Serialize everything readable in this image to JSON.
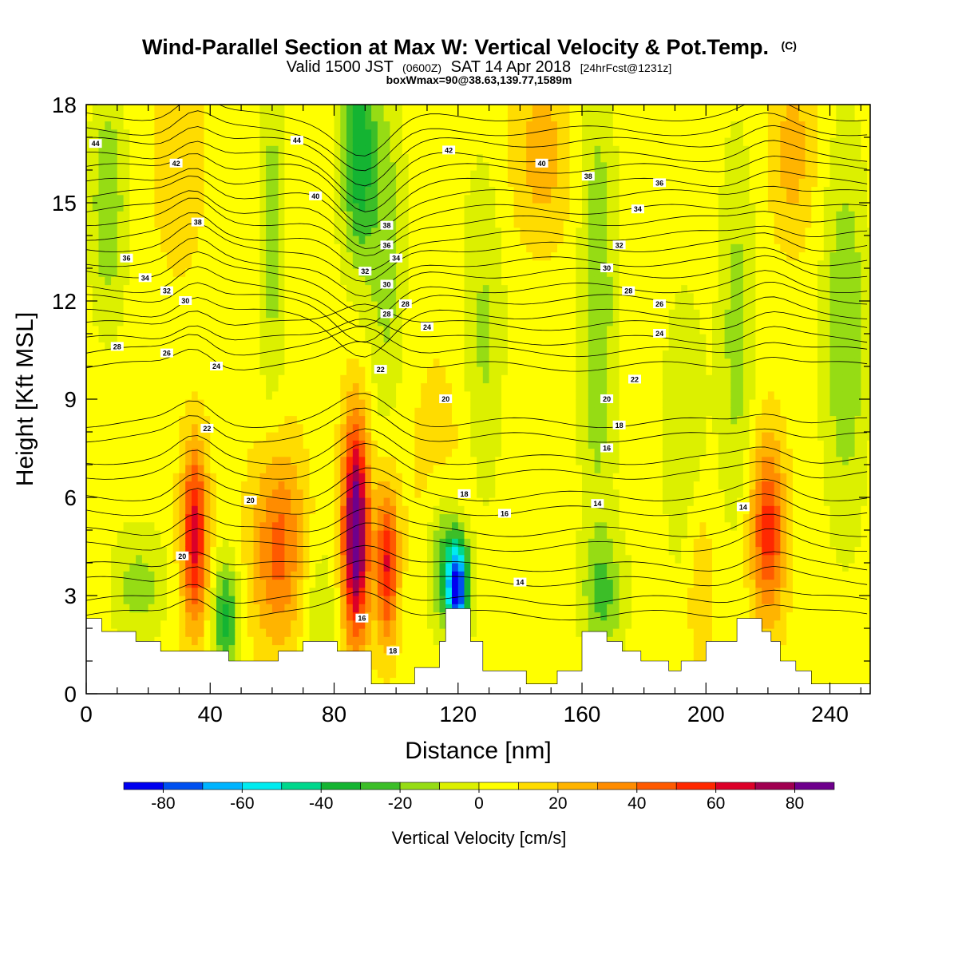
{
  "chart_data": {
    "type": "heatmap",
    "title": "Wind-Parallel Section at Max W: Vertical Velocity & Pot.Temp.",
    "title_superscript": "(C)",
    "subtitle_parts": [
      "Valid 1500 JST",
      "(0600Z)",
      "SAT 14 Apr 2018",
      "[24hrFcst@1231z]"
    ],
    "subtitle2": "boxWmax=90@38.63,139.77,1589m",
    "xlabel": "Distance [nm]",
    "ylabel": "Height [Kft MSL]",
    "xlim": [
      0,
      253
    ],
    "ylim": [
      0,
      18
    ],
    "x_ticks": [
      0,
      40,
      80,
      120,
      160,
      200,
      240
    ],
    "y_ticks": [
      0,
      3,
      6,
      9,
      12,
      15,
      18
    ],
    "colorbar": {
      "title": "Vertical Velocity [cm/s]",
      "levels": [
        -90,
        -80,
        -70,
        -60,
        -50,
        -40,
        -30,
        -20,
        -10,
        0,
        10,
        20,
        30,
        40,
        50,
        60,
        70,
        80,
        90
      ],
      "tick_values": [
        -80,
        -60,
        -40,
        -20,
        0,
        20,
        40,
        60,
        80
      ],
      "tick_labels": [
        "-80",
        "-60",
        "-40",
        "-20",
        "0",
        "20",
        "40",
        "60",
        "80"
      ],
      "colors": [
        "#0000f0",
        "#0050f0",
        "#00b4ff",
        "#00ebf0",
        "#00d78c",
        "#14b432",
        "#3cbe28",
        "#96dc14",
        "#dcf000",
        "#ffff00",
        "#ffdc00",
        "#ffb400",
        "#ff8c00",
        "#ff5a00",
        "#ff2800",
        "#dc0028",
        "#a00050",
        "#6e008c"
      ]
    },
    "background_w": 5,
    "updraft_cores": [
      {
        "x": 35,
        "z": 4.8,
        "w": 60,
        "sx": 3,
        "sz": 2.0
      },
      {
        "x": 62,
        "z": 4.5,
        "w": 40,
        "sx": 6,
        "sz": 2.2
      },
      {
        "x": 87,
        "z": 5.0,
        "w": 90,
        "sx": 3,
        "sz": 2.4
      },
      {
        "x": 97,
        "z": 4.0,
        "w": 55,
        "sx": 2.5,
        "sz": 1.7
      },
      {
        "x": 220,
        "z": 5.0,
        "w": 50,
        "sx": 4,
        "sz": 2.0
      },
      {
        "x": 147,
        "z": 16.5,
        "w": 20,
        "sx": 7,
        "sz": 2.0
      },
      {
        "x": 30,
        "z": 16.5,
        "w": 15,
        "sx": 6,
        "sz": 2.5
      },
      {
        "x": 228,
        "z": 16.5,
        "w": 20,
        "sx": 5,
        "sz": 2.0
      },
      {
        "x": 198,
        "z": 3.5,
        "w": 15,
        "sx": 3,
        "sz": 2.0
      },
      {
        "x": 118,
        "z": 7.0,
        "w": 10,
        "sx": 12,
        "sz": 3.0
      }
    ],
    "downdraft_cores": [
      {
        "x": 120,
        "z": 3.2,
        "w": -80,
        "sx": 2.5,
        "sz": 1.0
      },
      {
        "x": 116,
        "z": 4.0,
        "w": -35,
        "sx": 4,
        "sz": 1.5
      },
      {
        "x": 88,
        "z": 16.5,
        "w": -42,
        "sx": 4,
        "sz": 2.5
      },
      {
        "x": 97,
        "z": 13.5,
        "w": -20,
        "sx": 4,
        "sz": 4
      },
      {
        "x": 45,
        "z": 2.3,
        "w": -40,
        "sx": 3,
        "sz": 1.2
      },
      {
        "x": 7,
        "z": 15.0,
        "w": -25,
        "sx": 4,
        "sz": 2.5
      },
      {
        "x": 17,
        "z": 3.3,
        "w": -20,
        "sx": 6,
        "sz": 1.2
      },
      {
        "x": 167,
        "z": 3.0,
        "w": -25,
        "sx": 5,
        "sz": 1.3
      },
      {
        "x": 128,
        "z": 10.0,
        "w": -20,
        "sx": 5,
        "sz": 4
      },
      {
        "x": 165,
        "z": 12.0,
        "w": -25,
        "sx": 4,
        "sz": 5
      },
      {
        "x": 210,
        "z": 11.0,
        "w": -20,
        "sx": 4,
        "sz": 4
      },
      {
        "x": 245,
        "z": 11.0,
        "w": -25,
        "sx": 5,
        "sz": 4
      },
      {
        "x": 60,
        "z": 14.0,
        "w": -20,
        "sx": 3,
        "sz": 4
      },
      {
        "x": 193,
        "z": 8.0,
        "w": -15,
        "sx": 5,
        "sz": 3
      },
      {
        "x": 75,
        "z": 2.5,
        "w": -15,
        "sx": 4,
        "sz": 1.5
      }
    ],
    "terrain": [
      [
        0,
        2.3
      ],
      [
        5,
        2.3
      ],
      [
        5,
        1.9
      ],
      [
        16,
        1.9
      ],
      [
        16,
        1.6
      ],
      [
        24,
        1.6
      ],
      [
        24,
        1.3
      ],
      [
        46,
        1.3
      ],
      [
        46,
        1.0
      ],
      [
        62,
        1.0
      ],
      [
        62,
        1.3
      ],
      [
        70,
        1.3
      ],
      [
        70,
        1.6
      ],
      [
        81,
        1.6
      ],
      [
        81,
        1.3
      ],
      [
        92,
        1.3
      ],
      [
        92,
        0.3
      ],
      [
        106,
        0.3
      ],
      [
        106,
        0.8
      ],
      [
        114,
        0.8
      ],
      [
        114,
        1.6
      ],
      [
        116,
        1.6
      ],
      [
        116,
        2.6
      ],
      [
        124,
        2.6
      ],
      [
        124,
        1.6
      ],
      [
        128,
        1.6
      ],
      [
        128,
        0.7
      ],
      [
        142,
        0.7
      ],
      [
        142,
        0.3
      ],
      [
        152,
        0.3
      ],
      [
        152,
        0.7
      ],
      [
        160,
        0.7
      ],
      [
        160,
        1.9
      ],
      [
        168,
        1.9
      ],
      [
        168,
        1.6
      ],
      [
        173,
        1.6
      ],
      [
        173,
        1.3
      ],
      [
        179,
        1.3
      ],
      [
        179,
        1.0
      ],
      [
        188,
        1.0
      ],
      [
        188,
        0.7
      ],
      [
        192,
        0.7
      ],
      [
        192,
        1.0
      ],
      [
        200,
        1.0
      ],
      [
        200,
        1.6
      ],
      [
        210,
        1.6
      ],
      [
        210,
        2.3
      ],
      [
        218,
        2.3
      ],
      [
        218,
        1.9
      ],
      [
        221,
        1.9
      ],
      [
        221,
        1.6
      ],
      [
        224,
        1.6
      ],
      [
        224,
        1.0
      ],
      [
        229,
        1.0
      ],
      [
        229,
        0.7
      ],
      [
        234,
        0.7
      ],
      [
        234,
        0.3
      ],
      [
        253,
        0.3
      ]
    ],
    "theta_levels": [
      14,
      16,
      18,
      20,
      22,
      24,
      26,
      28,
      30,
      32,
      34,
      36,
      38,
      40,
      42,
      44
    ],
    "contour_labels": [
      {
        "text": "44",
        "x": 3,
        "z": 16.8
      },
      {
        "text": "42",
        "x": 29,
        "z": 16.2
      },
      {
        "text": "38",
        "x": 36,
        "z": 14.4
      },
      {
        "text": "36",
        "x": 13,
        "z": 13.3
      },
      {
        "text": "34",
        "x": 19,
        "z": 12.7
      },
      {
        "text": "32",
        "x": 26,
        "z": 12.3
      },
      {
        "text": "30",
        "x": 32,
        "z": 12.0
      },
      {
        "text": "28",
        "x": 10,
        "z": 10.6
      },
      {
        "text": "26",
        "x": 26,
        "z": 10.4
      },
      {
        "text": "24",
        "x": 42,
        "z": 10.0
      },
      {
        "text": "22",
        "x": 39,
        "z": 8.1
      },
      {
        "text": "20",
        "x": 53,
        "z": 5.9
      },
      {
        "text": "20",
        "x": 31,
        "z": 4.2
      },
      {
        "text": "44",
        "x": 68,
        "z": 16.9
      },
      {
        "text": "40",
        "x": 74,
        "z": 15.2
      },
      {
        "text": "38",
        "x": 97,
        "z": 14.3
      },
      {
        "text": "36",
        "x": 97,
        "z": 13.7
      },
      {
        "text": "34",
        "x": 100,
        "z": 13.3
      },
      {
        "text": "32",
        "x": 90,
        "z": 12.9
      },
      {
        "text": "30",
        "x": 97,
        "z": 12.5
      },
      {
        "text": "28",
        "x": 103,
        "z": 11.9
      },
      {
        "text": "28",
        "x": 97,
        "z": 11.6
      },
      {
        "text": "24",
        "x": 110,
        "z": 11.2
      },
      {
        "text": "22",
        "x": 95,
        "z": 9.9
      },
      {
        "text": "20",
        "x": 116,
        "z": 9.0
      },
      {
        "text": "42",
        "x": 117,
        "z": 16.6
      },
      {
        "text": "40",
        "x": 147,
        "z": 16.2
      },
      {
        "text": "38",
        "x": 162,
        "z": 15.8
      },
      {
        "text": "36",
        "x": 185,
        "z": 15.6
      },
      {
        "text": "34",
        "x": 178,
        "z": 14.8
      },
      {
        "text": "32",
        "x": 172,
        "z": 13.7
      },
      {
        "text": "30",
        "x": 168,
        "z": 13.0
      },
      {
        "text": "28",
        "x": 175,
        "z": 12.3
      },
      {
        "text": "26",
        "x": 185,
        "z": 11.9
      },
      {
        "text": "24",
        "x": 185,
        "z": 11.0
      },
      {
        "text": "22",
        "x": 177,
        "z": 9.6
      },
      {
        "text": "20",
        "x": 168,
        "z": 9.0
      },
      {
        "text": "18",
        "x": 172,
        "z": 8.2
      },
      {
        "text": "16",
        "x": 168,
        "z": 7.5
      },
      {
        "text": "18",
        "x": 122,
        "z": 6.1
      },
      {
        "text": "16",
        "x": 135,
        "z": 5.5
      },
      {
        "text": "14",
        "x": 165,
        "z": 5.8
      },
      {
        "text": "14",
        "x": 140,
        "z": 3.4
      },
      {
        "text": "14",
        "x": 212,
        "z": 5.7
      },
      {
        "text": "16",
        "x": 89,
        "z": 2.3
      },
      {
        "text": "18",
        "x": 99,
        "z": 1.3
      }
    ]
  }
}
